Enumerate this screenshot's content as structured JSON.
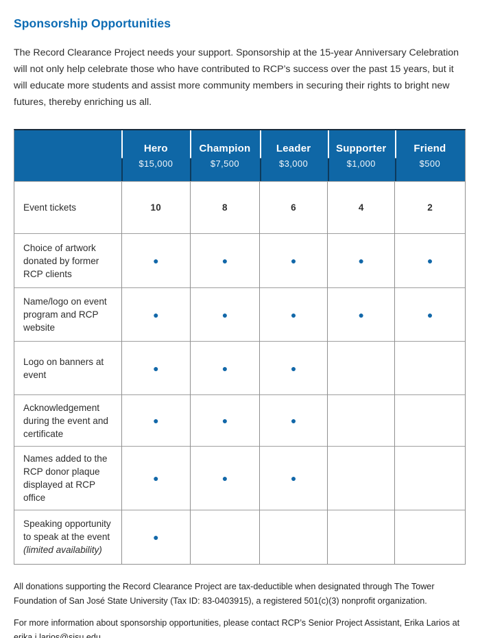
{
  "page": {
    "title": "Sponsorship Opportunities",
    "intro": "The Record Clearance Project needs your support. Sponsorship at the 15-year Anniversary Celebration will not only help celebrate those who have contributed to RCP’s success over the past 15 years, but it will educate more students and assist more community members in securing their rights to bright new futures, thereby enriching us all."
  },
  "colors": {
    "header_blue": "#0f67a6",
    "title_blue": "#0d6cb4",
    "dot_blue": "#1268a9"
  },
  "table": {
    "columns": [
      {
        "name": "Hero",
        "price": "$15,000"
      },
      {
        "name": "Champion",
        "price": "$7,500"
      },
      {
        "name": "Leader",
        "price": "$3,000"
      },
      {
        "name": "Supporter",
        "price": "$1,000"
      },
      {
        "name": "Friend",
        "price": "$500"
      }
    ],
    "rows": [
      {
        "label": "Event tickets",
        "cells": [
          "10",
          "8",
          "6",
          "4",
          "2"
        ]
      },
      {
        "label": "Choice of artwork donated by former RCP clients",
        "cells": [
          "●",
          "●",
          "●",
          "●",
          "●"
        ]
      },
      {
        "label": "Name/logo on event program and RCP website",
        "cells": [
          "●",
          "●",
          "●",
          "●",
          "●"
        ]
      },
      {
        "label": "Logo on banners at event",
        "cells": [
          "●",
          "●",
          "●",
          "",
          ""
        ]
      },
      {
        "label": "Acknowledgement during the event and certificate",
        "cells": [
          "●",
          "●",
          "●",
          "",
          ""
        ]
      },
      {
        "label": "Names added to the RCP donor plaque displayed at RCP office",
        "cells": [
          "●",
          "●",
          "●",
          "",
          ""
        ]
      },
      {
        "label": "Speaking opportunity to speak at the event",
        "note": "(limited availability)",
        "cells": [
          "●",
          "",
          "",
          "",
          ""
        ]
      }
    ]
  },
  "footer": {
    "tax_text": "All donations supporting the Record Clearance Project are tax-deductible when designated through The Tower Foundation of San José State University (Tax ID: 83-0403915), a registered 501(c)(3) nonprofit organization.",
    "contact_text": "For more information about sponsorship opportunities, please contact RCP’s Senior Project Assistant, Erika Larios at ",
    "contact_email": "erika.j.larios@sjsu.edu",
    "contact_suffix": "."
  }
}
